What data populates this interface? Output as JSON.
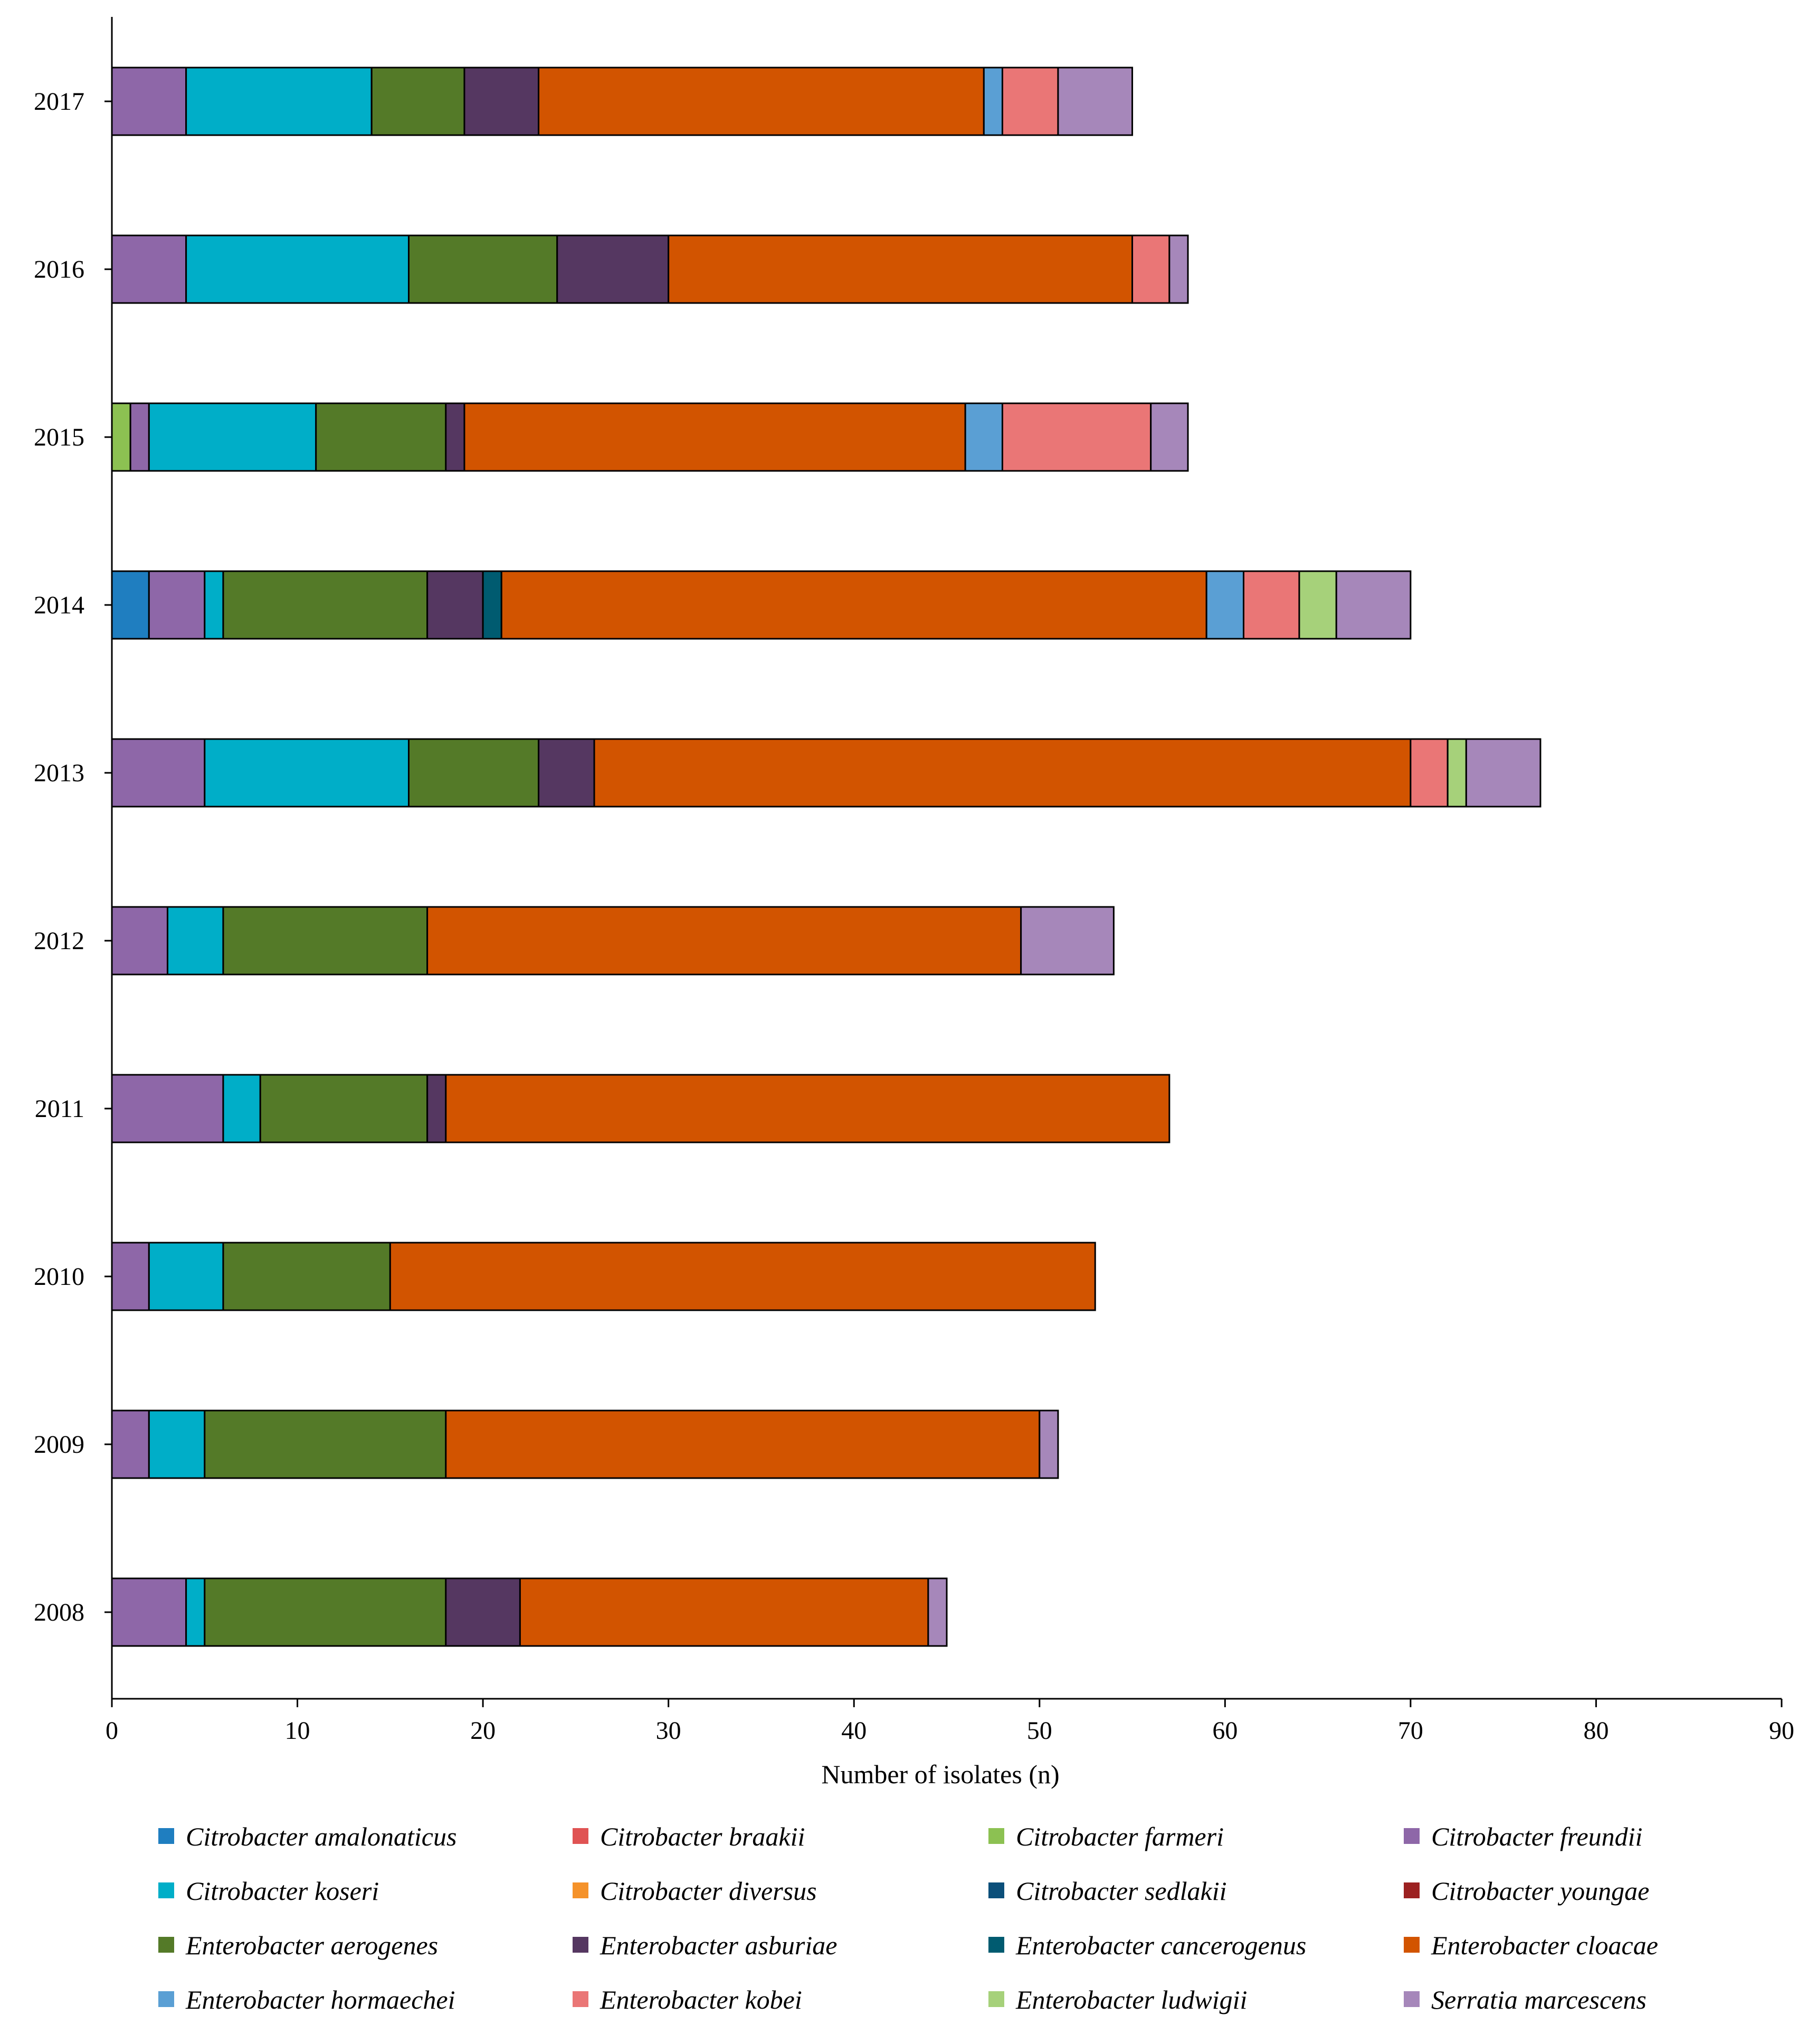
{
  "chart_data": {
    "type": "bar",
    "orientation": "horizontal",
    "stacked": true,
    "title": "",
    "xlabel": "Number of isolates (n)",
    "ylabel": "",
    "xlim": [
      0,
      90
    ],
    "xticks": [
      0,
      10,
      20,
      30,
      40,
      50,
      60,
      70,
      80,
      90
    ],
    "grid": false,
    "legend_position": "bottom",
    "categories": [
      "2017",
      "2016",
      "2015",
      "2014",
      "2013",
      "2012",
      "2011",
      "2010",
      "2009",
      "2008"
    ],
    "series": [
      {
        "name": "Citrobacter amalonaticus",
        "color": "#1f7ec0",
        "values": [
          0,
          0,
          0,
          2,
          0,
          0,
          0,
          0,
          0,
          0
        ]
      },
      {
        "name": "Citrobacter braakii",
        "color": "#e05353",
        "values": [
          0,
          0,
          0,
          0,
          0,
          0,
          0,
          0,
          0,
          0
        ]
      },
      {
        "name": "Citrobacter farmeri",
        "color": "#8cc152",
        "values": [
          0,
          0,
          1,
          0,
          0,
          0,
          0,
          0,
          0,
          0
        ]
      },
      {
        "name": "Citrobacter freundii",
        "color": "#8e67a8",
        "values": [
          4,
          4,
          1,
          3,
          5,
          3,
          6,
          2,
          2,
          4
        ]
      },
      {
        "name": "Citrobacter koseri",
        "color": "#00aec8",
        "values": [
          10,
          12,
          9,
          1,
          11,
          3,
          2,
          4,
          3,
          1
        ]
      },
      {
        "name": "Citrobacter diversus",
        "color": "#f5922a",
        "values": [
          0,
          0,
          0,
          0,
          0,
          0,
          0,
          0,
          0,
          0
        ]
      },
      {
        "name": "Citrobacter sedlakii",
        "color": "#0b4f7a",
        "values": [
          0,
          0,
          0,
          0,
          0,
          0,
          0,
          0,
          0,
          0
        ]
      },
      {
        "name": "Citrobacter youngae",
        "color": "#9c2121",
        "values": [
          0,
          0,
          0,
          0,
          0,
          0,
          0,
          0,
          0,
          0
        ]
      },
      {
        "name": "Enterobacter aerogenes",
        "color": "#547a28",
        "values": [
          5,
          8,
          7,
          11,
          7,
          11,
          9,
          9,
          13,
          13
        ]
      },
      {
        "name": "Enterobacter asburiae",
        "color": "#553761",
        "values": [
          4,
          6,
          1,
          3,
          3,
          0,
          1,
          0,
          0,
          4
        ]
      },
      {
        "name": "Enterobacter cancerogenus",
        "color": "#005b70",
        "values": [
          0,
          0,
          0,
          1,
          0,
          0,
          0,
          0,
          0,
          0
        ]
      },
      {
        "name": "Enterobacter cloacae",
        "color": "#d25400",
        "values": [
          24,
          25,
          27,
          38,
          44,
          32,
          39,
          38,
          32,
          22
        ]
      },
      {
        "name": "Enterobacter hormaechei",
        "color": "#5a9fd4",
        "values": [
          1,
          0,
          2,
          2,
          0,
          0,
          0,
          0,
          0,
          0
        ]
      },
      {
        "name": "Enterobacter kobei",
        "color": "#ea7676",
        "values": [
          3,
          2,
          8,
          3,
          2,
          0,
          0,
          0,
          0,
          0
        ]
      },
      {
        "name": "Enterobacter ludwigii",
        "color": "#a6d17a",
        "values": [
          0,
          0,
          0,
          2,
          1,
          0,
          0,
          0,
          0,
          0
        ]
      },
      {
        "name": "Serratia marcescens",
        "color": "#a687ba",
        "values": [
          4,
          1,
          2,
          4,
          4,
          5,
          0,
          0,
          1,
          1
        ]
      }
    ]
  }
}
